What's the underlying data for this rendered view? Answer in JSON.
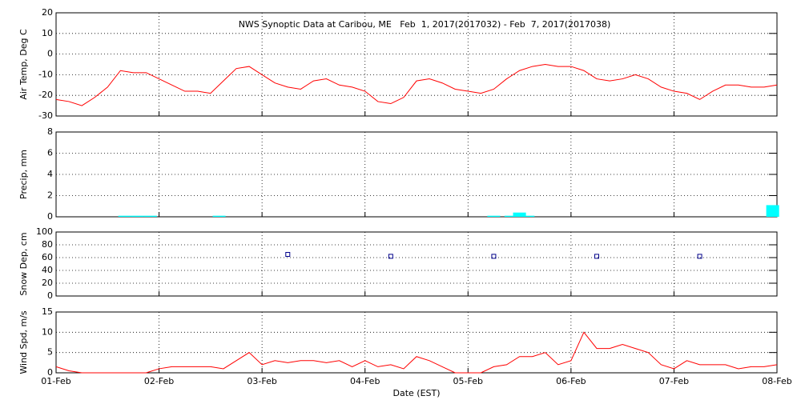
{
  "chart_data": [
    {
      "type": "line",
      "title": "NWS Synoptic Data at Caribou, ME   Feb  1, 2017(2017032) - Feb  7, 2017(2017038)",
      "ylabel": "Air Temp, Deg C",
      "ylim": [
        -30,
        20
      ],
      "yticks": [
        -30,
        -20,
        -10,
        0,
        10,
        20
      ],
      "grid": true,
      "x": [
        0,
        3,
        6,
        9,
        12,
        15,
        18,
        21,
        24,
        27,
        30,
        33,
        36,
        39,
        42,
        45,
        48,
        51,
        54,
        57,
        60,
        63,
        66,
        69,
        72,
        75,
        78,
        81,
        84,
        87,
        90,
        93,
        96,
        99,
        102,
        105,
        108,
        111,
        114,
        117,
        120,
        123,
        126,
        129,
        132,
        135,
        138,
        141,
        144,
        147,
        150,
        153,
        156,
        159,
        162,
        165,
        168
      ],
      "series": [
        {
          "color": "#ff0000",
          "values": [
            -22,
            -23,
            -25,
            -21,
            -16,
            -8,
            -9,
            -9,
            -12,
            -15,
            -18,
            -18,
            -19,
            -13,
            -7,
            -6,
            -10,
            -14,
            -16,
            -17,
            -13,
            -12,
            -15,
            -16,
            -18,
            -23,
            -24,
            -21,
            -13,
            -12,
            -14,
            -17,
            -18,
            -19,
            -17,
            -12,
            -8,
            -6,
            -5,
            -6,
            -6,
            -8,
            -12,
            -13,
            -12,
            -10,
            -12,
            -16,
            -18,
            -19,
            -22,
            -18,
            -15,
            -15,
            -16,
            -16,
            -15
          ]
        }
      ]
    },
    {
      "type": "bar",
      "ylabel": "Precip, mm",
      "ylim": [
        0,
        8
      ],
      "yticks": [
        0,
        2,
        4,
        6,
        8
      ],
      "grid": true,
      "x": [
        16,
        19,
        22,
        38,
        102,
        106,
        108,
        110,
        167
      ],
      "series": [
        {
          "color": "#00ffff",
          "values": [
            0.1,
            0.1,
            0.1,
            0.1,
            0.1,
            0.1,
            0.4,
            0.1,
            1.1
          ]
        }
      ]
    },
    {
      "type": "scatter",
      "ylabel": "Snow Dep, cm",
      "ylim": [
        0,
        100
      ],
      "yticks": [
        0,
        20,
        40,
        60,
        80,
        100
      ],
      "grid": true,
      "x": [
        54,
        78,
        102,
        126,
        150
      ],
      "series": [
        {
          "color": "#00008b",
          "values": [
            65,
            62,
            62,
            62,
            62
          ]
        }
      ]
    },
    {
      "type": "line",
      "ylabel": "Wind Spd, m/s",
      "xlabel": "Date (EST)",
      "ylim": [
        0,
        15
      ],
      "yticks": [
        0,
        5,
        10,
        15
      ],
      "grid": true,
      "xlim": [
        0,
        168
      ],
      "xticks": [
        {
          "value": 0,
          "label": "01-Feb"
        },
        {
          "value": 24,
          "label": "02-Feb"
        },
        {
          "value": 48,
          "label": "03-Feb"
        },
        {
          "value": 72,
          "label": "04-Feb"
        },
        {
          "value": 96,
          "label": "05-Feb"
        },
        {
          "value": 120,
          "label": "06-Feb"
        },
        {
          "value": 144,
          "label": "07-Feb"
        },
        {
          "value": 168,
          "label": "08-Feb"
        }
      ],
      "x": [
        0,
        3,
        6,
        9,
        12,
        15,
        18,
        21,
        24,
        27,
        30,
        33,
        36,
        39,
        42,
        45,
        48,
        51,
        54,
        57,
        60,
        63,
        66,
        69,
        72,
        75,
        78,
        81,
        84,
        87,
        90,
        93,
        96,
        99,
        102,
        105,
        108,
        111,
        114,
        117,
        120,
        123,
        126,
        129,
        132,
        135,
        138,
        141,
        144,
        147,
        150,
        153,
        156,
        159,
        162,
        165,
        168
      ],
      "series": [
        {
          "color": "#ff0000",
          "values": [
            1.5,
            0.5,
            0,
            0,
            0,
            0,
            0,
            0,
            1,
            1.5,
            1.5,
            1.5,
            1.5,
            1,
            3,
            5,
            2,
            3,
            2.5,
            3,
            3,
            2.5,
            3,
            1.5,
            3,
            1.5,
            2,
            1,
            4,
            3,
            1.5,
            0,
            0,
            0,
            1.5,
            2,
            4,
            4,
            5,
            2,
            3,
            10,
            6,
            6,
            7,
            6,
            5,
            2,
            1,
            3,
            2,
            2,
            2,
            1,
            1.5,
            1.5,
            2
          ]
        }
      ]
    }
  ]
}
